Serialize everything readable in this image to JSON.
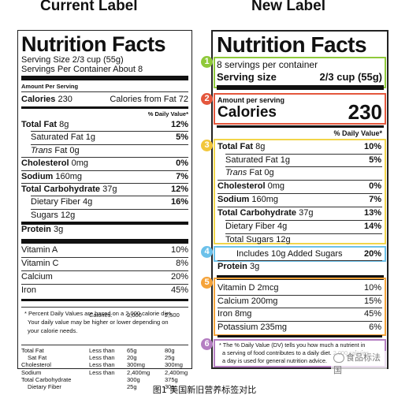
{
  "headings": {
    "current": "Current Label",
    "new": "New Label"
  },
  "caption": "图1 美国新旧营养标签对比",
  "watermark": "食品标法国",
  "colors": {
    "green": "#8fc93a",
    "red": "#e4573d",
    "yellow": "#f2d54a",
    "blue": "#6cc1ea",
    "orange": "#f5a33a",
    "purple": "#b57ec2"
  },
  "current": {
    "title": "Nutrition Facts",
    "serving_size": "Serving Size 2/3 cup (55g)",
    "servings_per": "Servings Per Container About 8",
    "amount_per": "Amount Per Serving",
    "calories_label": "Calories",
    "calories_value": "230",
    "calories_fat": "Calories from Fat 72",
    "dv_header": "% Daily Value*",
    "rows": [
      {
        "name": "Total Fat",
        "amt": "8g",
        "dv": "12%"
      },
      {
        "name": "Saturated Fat",
        "amt": "1g",
        "dv": "5%"
      },
      {
        "name": "Trans",
        "amt": "Fat 0g",
        "dv": ""
      },
      {
        "name": "Cholesterol",
        "amt": "0mg",
        "dv": "0%"
      },
      {
        "name": "Sodium",
        "amt": "160mg",
        "dv": "7%"
      },
      {
        "name": "Total Carbohydrate",
        "amt": "37g",
        "dv": "12%"
      },
      {
        "name": "Dietary Fiber",
        "amt": "4g",
        "dv": "16%"
      },
      {
        "name": "Sugars",
        "amt": "12g",
        "dv": ""
      },
      {
        "name": "Protein",
        "amt": "3g",
        "dv": ""
      }
    ],
    "vitamins": [
      {
        "name": "Vitamin A",
        "dv": "10%"
      },
      {
        "name": "Vitamin C",
        "dv": "8%"
      },
      {
        "name": "Calcium",
        "dv": "20%"
      },
      {
        "name": "Iron",
        "dv": "45%"
      }
    ],
    "footnote": [
      "* Percent Daily Values are based on a 2,000 calorie diet.",
      "Your daily value may be higher or lower depending on",
      "your calorie needs."
    ],
    "table": {
      "header": [
        "",
        "Calories:",
        "2,000",
        "2,500"
      ],
      "rows": [
        [
          "Total Fat",
          "Less than",
          "65g",
          "80g"
        ],
        [
          "Sat Fat",
          "Less than",
          "20g",
          "25g"
        ],
        [
          "Cholesterol",
          "Less than",
          "300mg",
          "300mg"
        ],
        [
          "Sodium",
          "Less than",
          "2,400mg",
          "2,400mg"
        ],
        [
          "Total Carbohydrate",
          "",
          "300g",
          "375g"
        ],
        [
          "Dietary Fiber",
          "",
          "25g",
          "30g"
        ]
      ]
    }
  },
  "new": {
    "title": "Nutrition Facts",
    "servings_per": "8 servings per container",
    "serving_size_label": "Serving size",
    "serving_size_value": "2/3 cup (55g)",
    "amount_per": "Amount per serving",
    "calories_label": "Calories",
    "calories_value": "230",
    "dv_header": "% Daily Value*",
    "rows": [
      {
        "name": "Total Fat",
        "amt": "8g",
        "dv": "10%"
      },
      {
        "name": "Saturated Fat",
        "amt": "1g",
        "dv": "5%"
      },
      {
        "name": "Trans",
        "amt": "Fat 0g",
        "dv": ""
      },
      {
        "name": "Cholesterol",
        "amt": "0mg",
        "dv": "0%"
      },
      {
        "name": "Sodium",
        "amt": "160mg",
        "dv": "7%"
      },
      {
        "name": "Total Carbohydrate",
        "amt": "37g",
        "dv": "13%"
      },
      {
        "name": "Dietary Fiber",
        "amt": "4g",
        "dv": "14%"
      },
      {
        "name": "Total Sugars",
        "amt": "12g",
        "dv": ""
      },
      {
        "name": "Includes 10g Added Sugars",
        "amt": "",
        "dv": "20%"
      },
      {
        "name": "Protein",
        "amt": "3g",
        "dv": ""
      }
    ],
    "vitamins": [
      {
        "name": "Vitamin D 2mcg",
        "dv": "10%"
      },
      {
        "name": "Calcium 200mg",
        "dv": "15%"
      },
      {
        "name": "Iron 8mg",
        "dv": "45%"
      },
      {
        "name": "Potassium 235mg",
        "dv": "6%"
      }
    ],
    "footnote": [
      "* The % Daily Value (DV) tells you how much a nutrient in",
      "a serving of food contributes to a daily diet. 2,000 calories",
      "a day is used for general nutrition advice."
    ],
    "badges": [
      "1",
      "2",
      "3",
      "4",
      "5",
      "6"
    ]
  }
}
